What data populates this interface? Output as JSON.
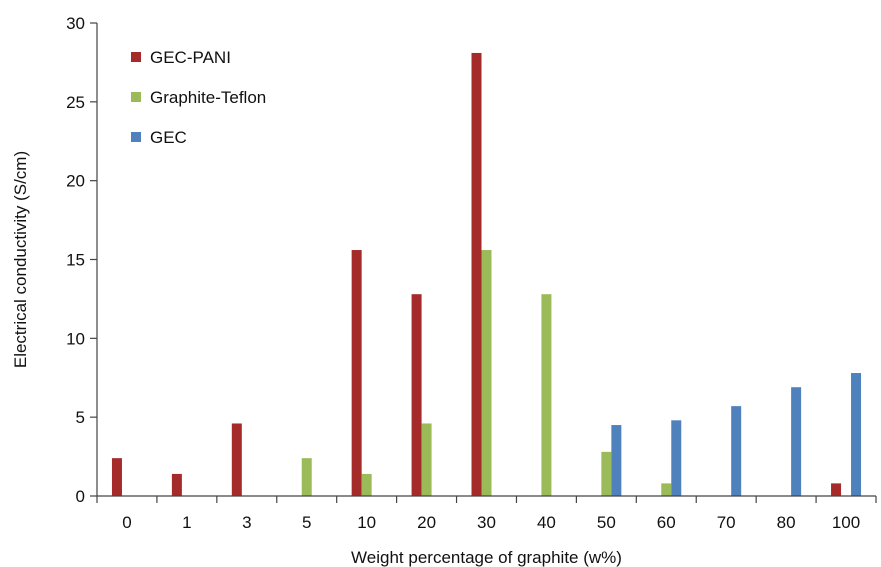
{
  "chart_data": {
    "type": "bar",
    "xlabel": "Weight percentage of graphite (w%)",
    "ylabel": "Electrical conductivity (S/cm)",
    "categories": [
      "0",
      "1",
      "3",
      "5",
      "10",
      "20",
      "30",
      "40",
      "50",
      "60",
      "70",
      "80",
      "100"
    ],
    "ylim": [
      0,
      30
    ],
    "yticks": [
      0,
      5,
      10,
      15,
      20,
      25,
      30
    ],
    "legend_position": "top-left",
    "grid": false,
    "series": [
      {
        "name": "GEC-PANI",
        "color": "#A52A2A",
        "values": [
          2.4,
          1.4,
          4.6,
          null,
          15.6,
          12.8,
          28.1,
          null,
          null,
          null,
          null,
          null,
          0.8
        ]
      },
      {
        "name": "Graphite-Teflon",
        "color": "#9BBB59",
        "values": [
          null,
          null,
          null,
          2.4,
          1.4,
          4.6,
          15.6,
          12.8,
          2.8,
          0.8,
          null,
          null,
          null
        ]
      },
      {
        "name": "GEC",
        "color": "#4F81BD",
        "values": [
          null,
          null,
          null,
          null,
          null,
          null,
          null,
          null,
          4.5,
          4.8,
          5.7,
          6.9,
          7.8
        ]
      }
    ]
  }
}
